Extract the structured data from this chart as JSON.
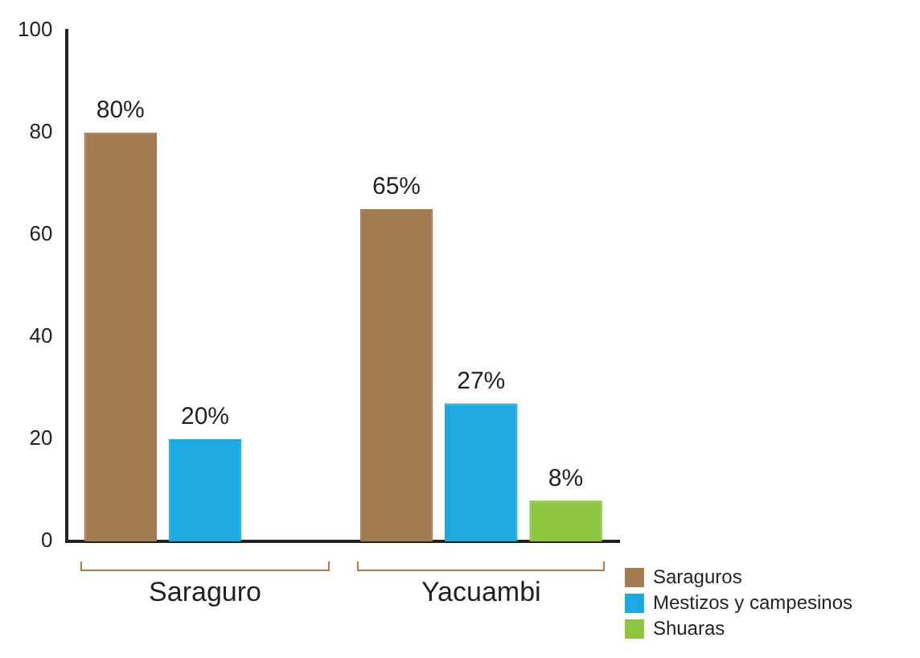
{
  "chart_data": {
    "type": "bar",
    "categories": [
      "Saraguro",
      "Yacuambi"
    ],
    "series": [
      {
        "name": "Saraguros",
        "color": "#a47a50",
        "values": [
          80,
          65
        ],
        "value_labels": [
          "80%",
          "65%"
        ]
      },
      {
        "name": "Mestizos y campesinos",
        "color": "#1ca8e0",
        "values": [
          20,
          27
        ],
        "value_labels": [
          "20%",
          "27%"
        ]
      },
      {
        "name": "Shuaras",
        "color": "#8cc63f",
        "values": [
          null,
          8
        ],
        "value_labels": [
          null,
          "8%"
        ]
      }
    ],
    "ylim": [
      0,
      100
    ],
    "yticks": [
      0,
      20,
      40,
      60,
      80,
      100
    ],
    "grid": false,
    "legend": "right"
  }
}
